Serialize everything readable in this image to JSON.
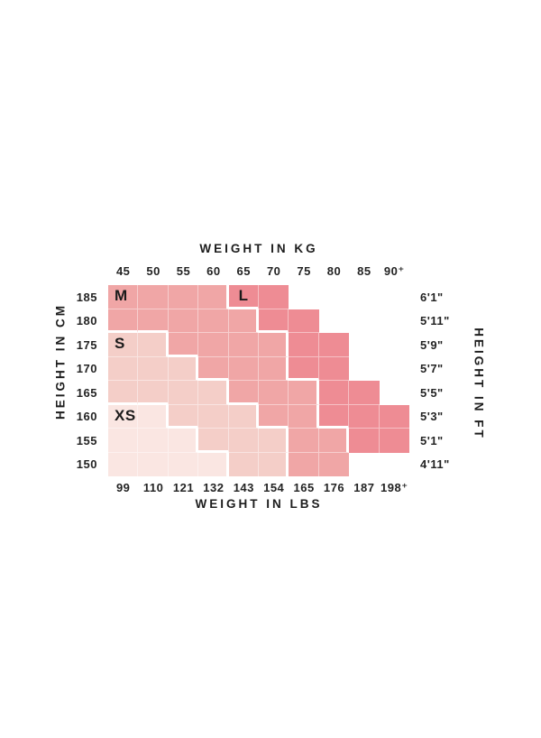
{
  "chart_data": {
    "type": "heatmap",
    "description": "Clothing size chart: size regions (XS, S, M, L) by body height and weight",
    "title_top": "WEIGHT IN KG",
    "title_bottom": "WEIGHT IN LBS",
    "title_left": "HEIGHT IN CM",
    "title_right": "HEIGHT IN FT",
    "columns_kg": [
      "45",
      "50",
      "55",
      "60",
      "65",
      "70",
      "75",
      "80",
      "85",
      "90⁺"
    ],
    "columns_lbs": [
      "99",
      "110",
      "121",
      "132",
      "143",
      "154",
      "165",
      "176",
      "187",
      "198⁺"
    ],
    "rows_cm": [
      "185",
      "180",
      "175",
      "170",
      "165",
      "160",
      "155",
      "150"
    ],
    "rows_ft": [
      "6'1\"",
      "5'11\"",
      "5'9\"",
      "5'7\"",
      "5'5\"",
      "5'3\"",
      "5'1\"",
      "4'11\""
    ],
    "legend_position": "labels-inside-regions",
    "grid": {
      "gridline_color": "rgba(255,255,255,0.45)",
      "region_border_color": "#ffffff",
      "text_color": "#1d1d1d",
      "background": "#ffffff"
    },
    "sizes": [
      {
        "label": "XS",
        "color": "#fae6e2",
        "label_row": 5,
        "label_col": 0,
        "cells_by_row": [
          [
            5,
            0,
            1
          ],
          [
            6,
            0,
            2
          ],
          [
            7,
            0,
            3
          ]
        ]
      },
      {
        "label": "S",
        "color": "#f4cec8",
        "label_row": 2,
        "label_col": 0,
        "cells_by_row": [
          [
            2,
            0,
            1
          ],
          [
            3,
            0,
            2
          ],
          [
            4,
            0,
            3
          ],
          [
            5,
            2,
            4
          ],
          [
            6,
            3,
            5
          ],
          [
            7,
            4,
            5
          ]
        ]
      },
      {
        "label": "M",
        "color": "#f0a6a6",
        "label_row": 0,
        "label_col": 0,
        "cells_by_row": [
          [
            0,
            0,
            3
          ],
          [
            1,
            0,
            4
          ],
          [
            2,
            2,
            5
          ],
          [
            3,
            3,
            5
          ],
          [
            4,
            4,
            6
          ],
          [
            5,
            5,
            6
          ],
          [
            6,
            6,
            7
          ],
          [
            7,
            6,
            7
          ]
        ]
      },
      {
        "label": "L",
        "color": "#ee8c94",
        "label_row": 0,
        "label_col": 4,
        "cells_by_row": [
          [
            0,
            4,
            5
          ],
          [
            1,
            5,
            6
          ],
          [
            2,
            6,
            7
          ],
          [
            3,
            6,
            7
          ],
          [
            4,
            7,
            8
          ],
          [
            5,
            7,
            9
          ],
          [
            6,
            8,
            9
          ]
        ]
      }
    ]
  }
}
